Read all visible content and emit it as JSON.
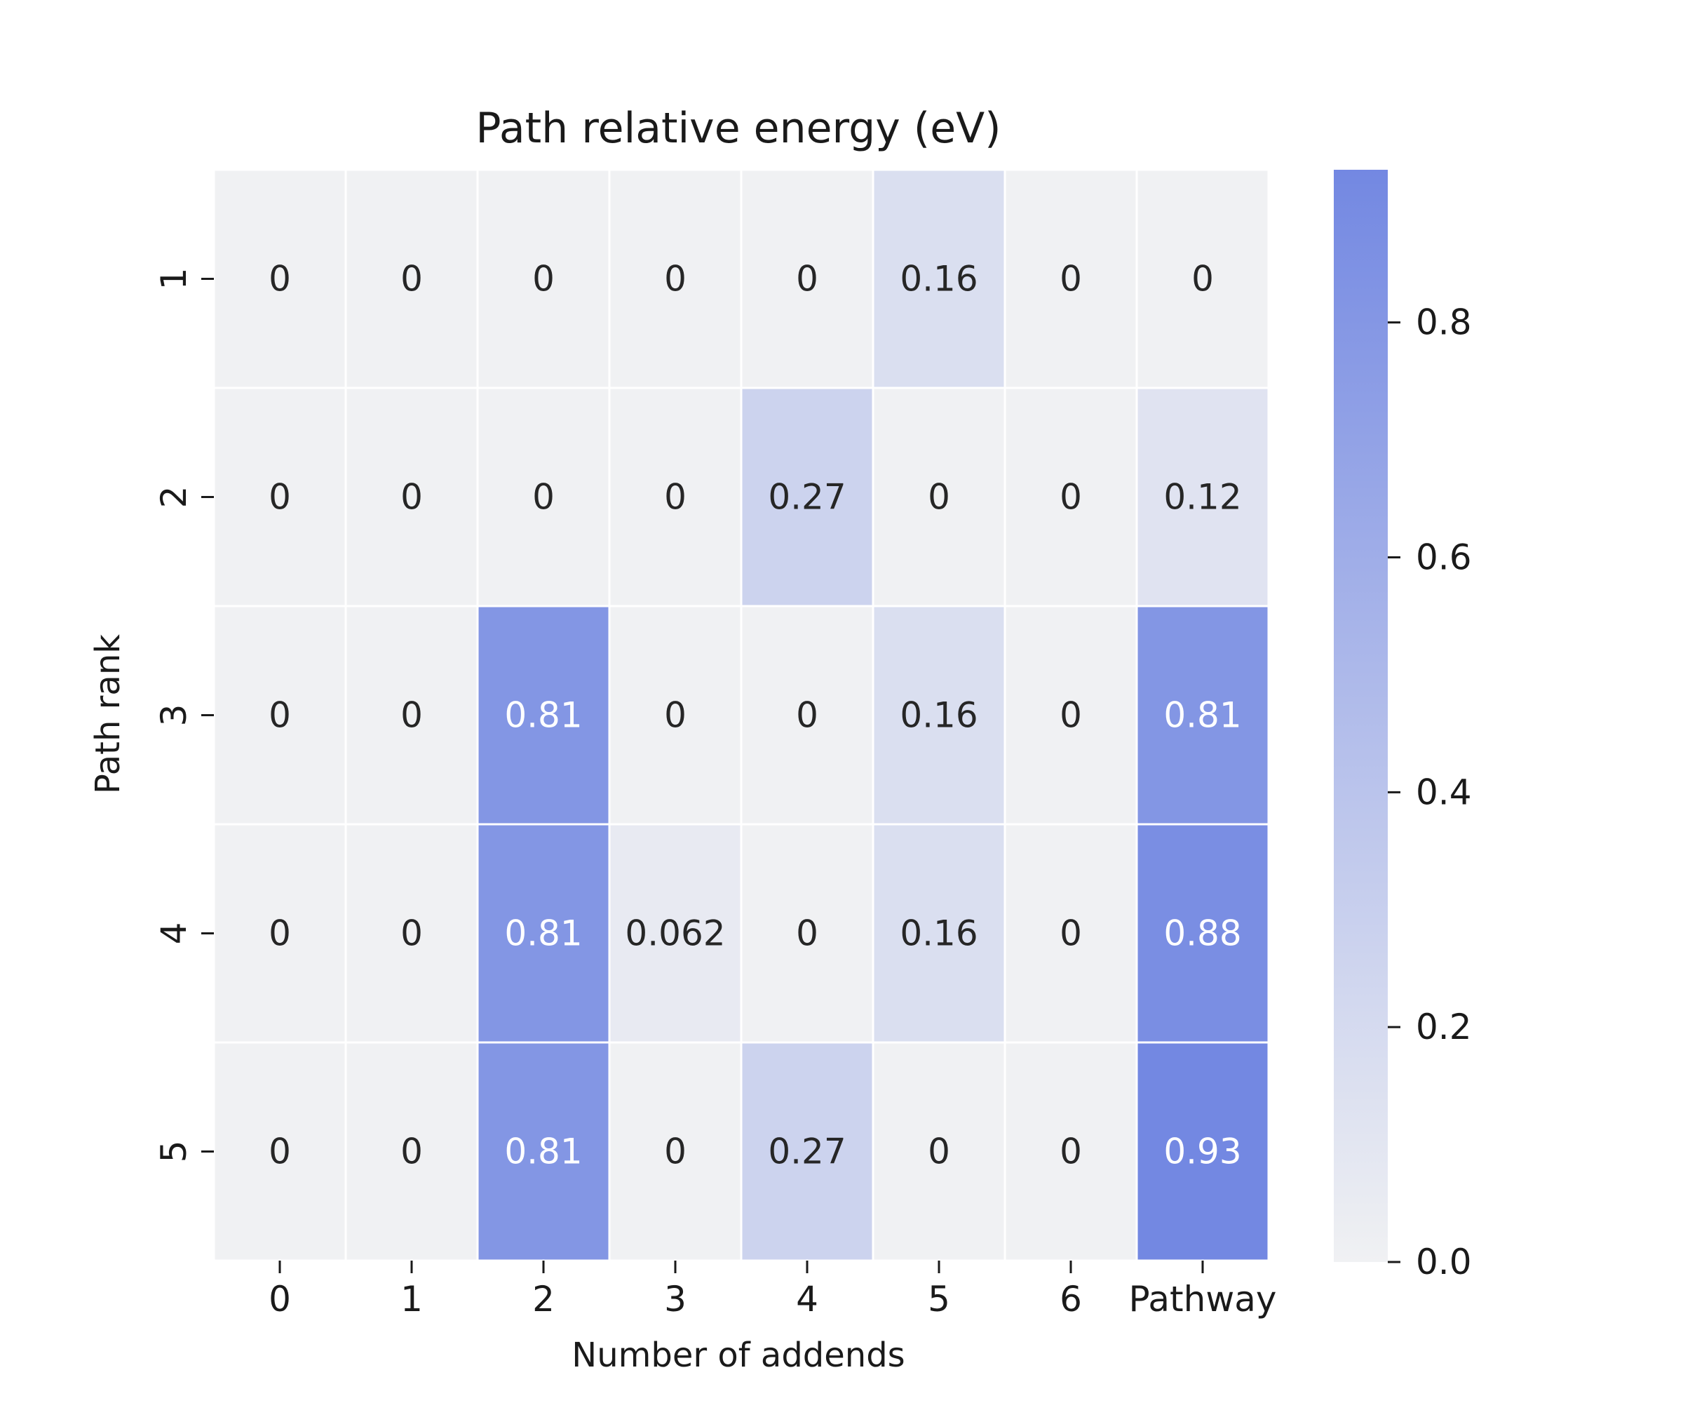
{
  "chart_data": {
    "type": "heatmap",
    "title": "Path relative energy (eV)",
    "xlabel": "Number of addends",
    "ylabel": "Path rank",
    "x_categories": [
      "0",
      "1",
      "2",
      "3",
      "4",
      "5",
      "6",
      "Pathway"
    ],
    "y_categories": [
      "1",
      "2",
      "3",
      "4",
      "5"
    ],
    "values": [
      [
        0,
        0,
        0,
        0,
        0,
        0.16,
        0,
        0
      ],
      [
        0,
        0,
        0,
        0,
        0.27,
        0,
        0,
        0.12
      ],
      [
        0,
        0,
        0.81,
        0,
        0,
        0.16,
        0,
        0.81
      ],
      [
        0,
        0,
        0.81,
        0.062,
        0,
        0.16,
        0,
        0.88
      ],
      [
        0,
        0,
        0.81,
        0,
        0.27,
        0,
        0,
        0.93
      ]
    ],
    "cell_labels": [
      [
        "0",
        "0",
        "0",
        "0",
        "0",
        "0.16",
        "0",
        "0"
      ],
      [
        "0",
        "0",
        "0",
        "0",
        "0.27",
        "0",
        "0",
        "0.12"
      ],
      [
        "0",
        "0",
        "0.81",
        "0",
        "0",
        "0.16",
        "0",
        "0.81"
      ],
      [
        "0",
        "0",
        "0.81",
        "0.062",
        "0",
        "0.16",
        "0",
        "0.88"
      ],
      [
        "0",
        "0",
        "0.81",
        "0",
        "0.27",
        "0",
        "0",
        "0.93"
      ]
    ],
    "colorbar": {
      "range": [
        0,
        0.93
      ],
      "ticks": [
        0,
        0.2,
        0.4,
        0.6,
        0.8
      ],
      "tick_labels": [
        "0.0",
        "0.2",
        "0.4",
        "0.6",
        "0.8"
      ],
      "color_low": "#f0f1f3",
      "color_high": "#7388e2"
    },
    "grid": false
  }
}
